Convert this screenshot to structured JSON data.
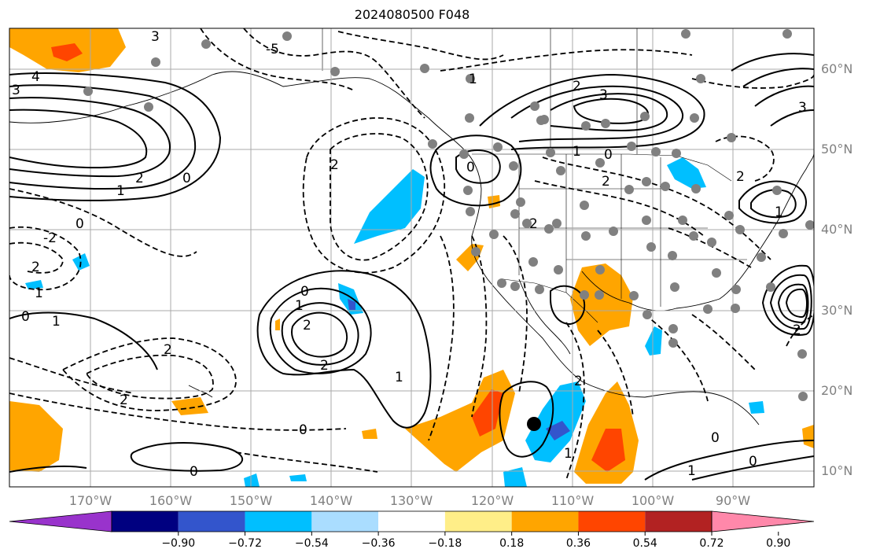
{
  "title": "2024080500 F048",
  "lat_labels": [
    "60°N",
    "50°N",
    "40°N",
    "30°N",
    "20°N",
    "10°N"
  ],
  "lon_labels": [
    "170°W",
    "160°W",
    "150°W",
    "140°W",
    "130°W",
    "120°W",
    "110°W",
    "100°W",
    "90°W"
  ],
  "colorbar": {
    "colors": [
      "#9933cc",
      "#000080",
      "#3355cc",
      "#00bfff",
      "#aaddff",
      "#ffffff",
      "#ffee88",
      "#ffa500",
      "#ff4500",
      "#b22222",
      "#ff88aa"
    ],
    "ticks": [
      "−0.90",
      "−0.72",
      "−0.54",
      "−0.36",
      "−0.18",
      "0.18",
      "0.36",
      "0.54",
      "0.72",
      "0.90"
    ]
  },
  "contour_labels": [
    {
      "text": "-5"
    },
    {
      "text": "3"
    },
    {
      "text": "4"
    },
    {
      "text": "3"
    },
    {
      "text": "2"
    },
    {
      "text": "1"
    },
    {
      "text": "0"
    },
    {
      "text": "2"
    },
    {
      "text": "-2"
    },
    {
      "text": "0"
    },
    {
      "text": "2"
    },
    {
      "text": "1"
    },
    {
      "text": "2"
    },
    {
      "text": "3"
    },
    {
      "text": "2"
    },
    {
      "text": "1"
    },
    {
      "text": "0"
    },
    {
      "text": "2"
    },
    {
      "text": "0"
    },
    {
      "text": "1"
    },
    {
      "text": "2"
    },
    {
      "text": "2"
    },
    {
      "text": "1"
    },
    {
      "text": "0"
    },
    {
      "text": "1"
    },
    {
      "text": "2"
    },
    {
      "text": "1"
    },
    {
      "text": "2"
    },
    {
      "text": "0"
    },
    {
      "text": "0"
    },
    {
      "text": "0"
    },
    {
      "text": "2"
    },
    {
      "text": "1"
    },
    {
      "text": "0"
    },
    {
      "text": "0"
    },
    {
      "text": "1"
    },
    {
      "text": "2"
    },
    {
      "text": "2"
    },
    {
      "text": "1"
    },
    {
      "text": "3"
    }
  ]
}
